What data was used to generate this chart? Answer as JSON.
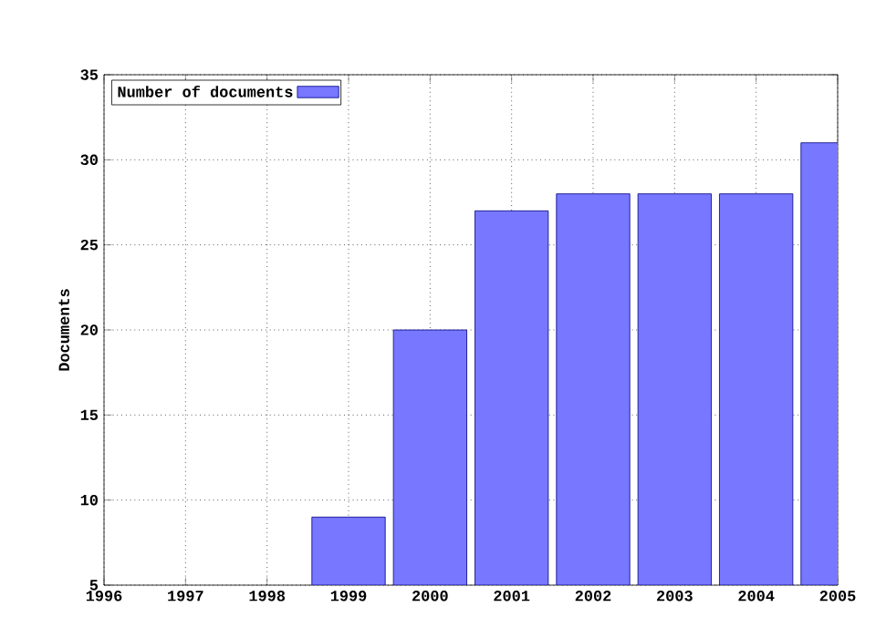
{
  "chart_data": {
    "type": "bar",
    "ylabel": "Documents",
    "x": [
      1999,
      2000,
      2001,
      2002,
      2003,
      2004,
      2005
    ],
    "series": [
      {
        "name": "Number of documents",
        "color": "#7777ff",
        "values": [
          9,
          20,
          27,
          28,
          28,
          28,
          31
        ]
      }
    ],
    "xlim": [
      1996,
      2005
    ],
    "ylim": [
      5,
      35
    ],
    "xticks": [
      1996,
      1997,
      1998,
      1999,
      2000,
      2001,
      2002,
      2003,
      2004,
      2005
    ],
    "yticks": [
      5,
      10,
      15,
      20,
      25,
      30,
      35
    ],
    "grid": true,
    "legend": "top left"
  }
}
